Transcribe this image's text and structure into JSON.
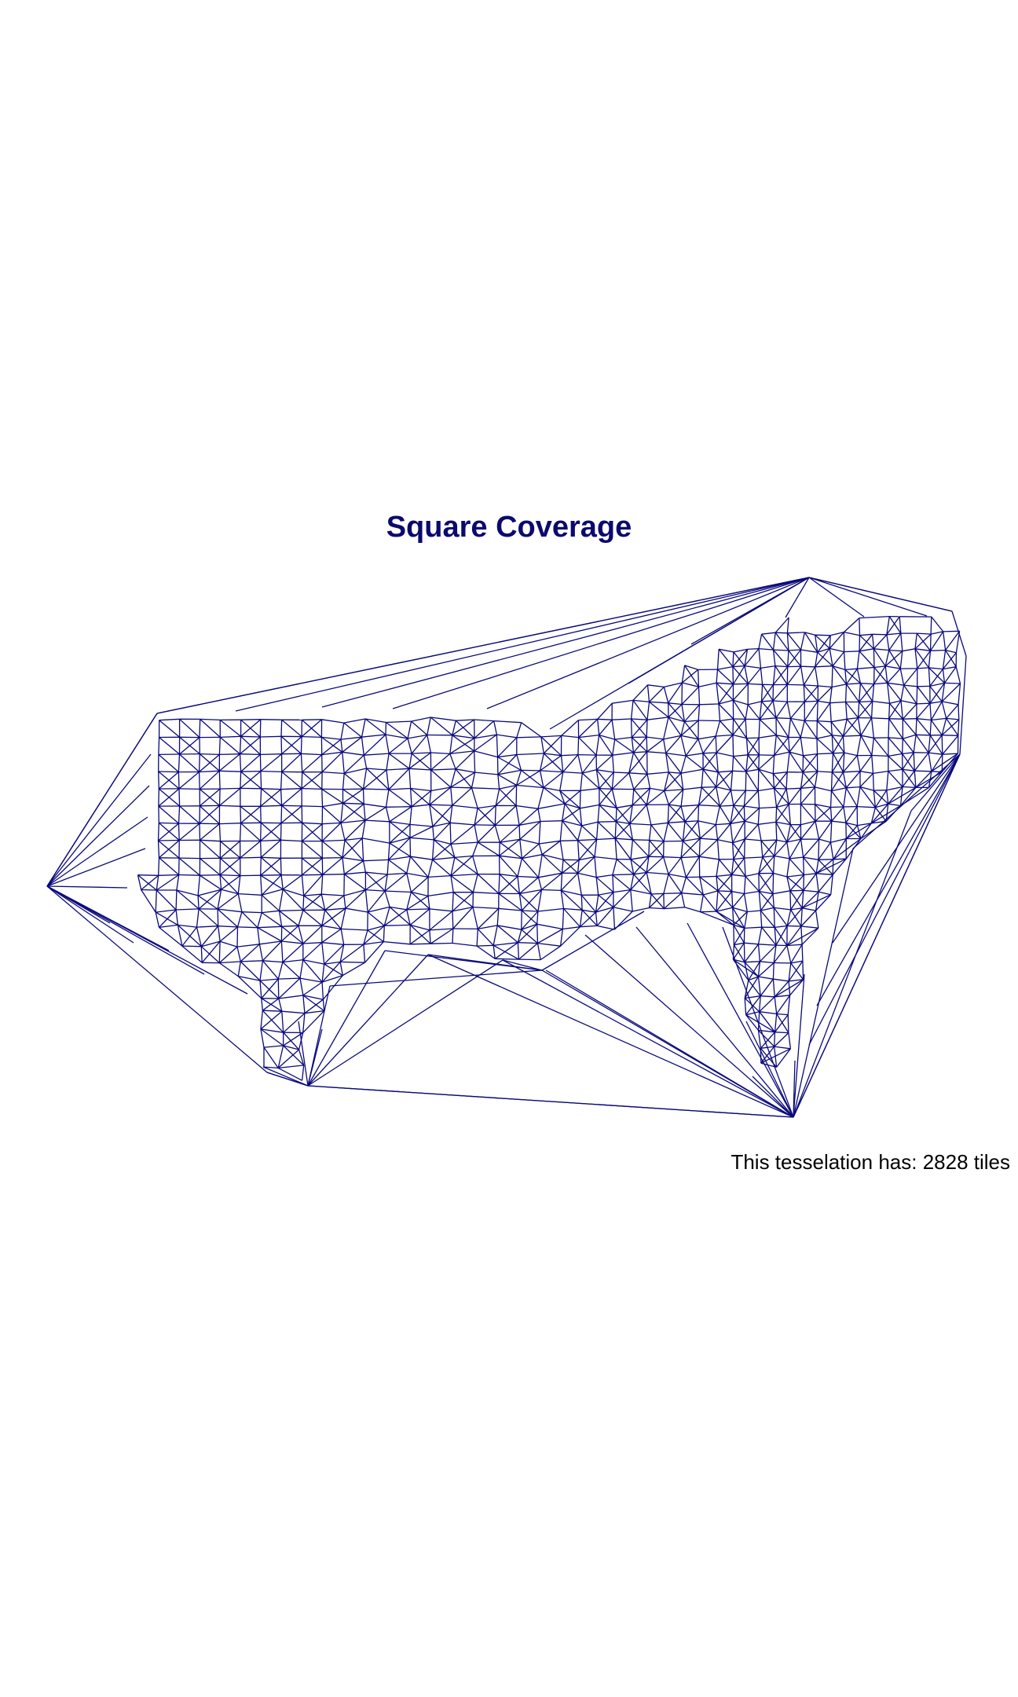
{
  "title": "Square Coverage",
  "caption": {
    "prefix": "This tesselation has: ",
    "count": "2828",
    "suffix": " tiles"
  },
  "style": {
    "title_color": "#0a0a6e",
    "mesh_color": "#0a0a7a",
    "caption_color": "#000000",
    "background": "#ffffff"
  },
  "mesh": {
    "type": "delaunay-triangulation",
    "tile_count": 2828
  }
}
